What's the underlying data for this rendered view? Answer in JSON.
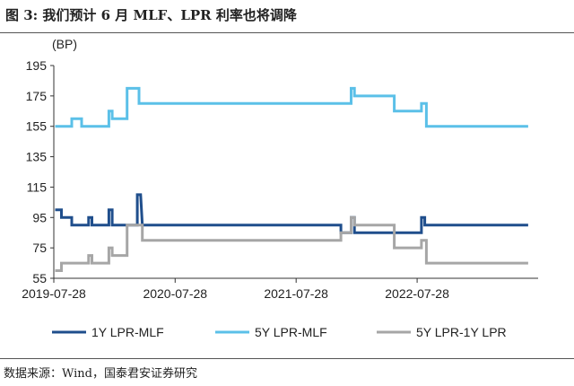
{
  "header": {
    "title": "图 3: 我们预计 6 月 MLF、LPR 利率也将调降"
  },
  "footer": {
    "source": "数据来源：Wind，国泰君安证券研究"
  },
  "chart_data": {
    "type": "line",
    "unit_label": "(BP)",
    "ylim": [
      55,
      195
    ],
    "yticks": [
      55,
      75,
      95,
      115,
      135,
      155,
      175,
      195
    ],
    "xlim": [
      "2019-07-28",
      "2023-07-28"
    ],
    "xticks": [
      "2019-07-28",
      "2020-07-28",
      "2021-07-28",
      "2022-07-28"
    ],
    "grid": false,
    "legend_position": "bottom",
    "series": [
      {
        "name": "1Y LPR-MLF",
        "color": "#1F4E8C",
        "points": [
          [
            "2019-08-01",
            100
          ],
          [
            "2019-08-20",
            100
          ],
          [
            "2019-08-20",
            95
          ],
          [
            "2019-09-20",
            95
          ],
          [
            "2019-09-20",
            90
          ],
          [
            "2019-11-10",
            90
          ],
          [
            "2019-11-10",
            95
          ],
          [
            "2019-11-20",
            95
          ],
          [
            "2019-11-20",
            90
          ],
          [
            "2020-01-10",
            90
          ],
          [
            "2020-01-10",
            100
          ],
          [
            "2020-01-20",
            100
          ],
          [
            "2020-01-20",
            90
          ],
          [
            "2020-04-05",
            90
          ],
          [
            "2020-04-05",
            110
          ],
          [
            "2020-04-15",
            110
          ],
          [
            "2020-04-20",
            90
          ],
          [
            "2021-12-10",
            90
          ],
          [
            "2021-12-10",
            85
          ],
          [
            "2022-01-10",
            85
          ],
          [
            "2022-01-10",
            95
          ],
          [
            "2022-01-20",
            95
          ],
          [
            "2022-01-20",
            85
          ],
          [
            "2022-08-10",
            85
          ],
          [
            "2022-08-10",
            95
          ],
          [
            "2022-08-20",
            95
          ],
          [
            "2022-08-20",
            90
          ],
          [
            "2023-06-28",
            90
          ]
        ]
      },
      {
        "name": "5Y LPR-MLF",
        "color": "#5BC0E8",
        "points": [
          [
            "2019-08-01",
            155
          ],
          [
            "2019-09-20",
            155
          ],
          [
            "2019-09-20",
            160
          ],
          [
            "2019-10-20",
            160
          ],
          [
            "2019-10-20",
            155
          ],
          [
            "2020-01-10",
            155
          ],
          [
            "2020-01-10",
            165
          ],
          [
            "2020-01-20",
            165
          ],
          [
            "2020-01-20",
            160
          ],
          [
            "2020-03-05",
            160
          ],
          [
            "2020-03-05",
            180
          ],
          [
            "2020-04-10",
            180
          ],
          [
            "2020-04-10",
            170
          ],
          [
            "2022-01-10",
            170
          ],
          [
            "2022-01-10",
            180
          ],
          [
            "2022-01-20",
            180
          ],
          [
            "2022-01-20",
            175
          ],
          [
            "2022-05-20",
            175
          ],
          [
            "2022-05-20",
            165
          ],
          [
            "2022-08-10",
            165
          ],
          [
            "2022-08-10",
            170
          ],
          [
            "2022-08-25",
            170
          ],
          [
            "2022-08-25",
            155
          ],
          [
            "2023-06-28",
            155
          ]
        ]
      },
      {
        "name": "5Y LPR-1Y LPR",
        "color": "#A6A6A6",
        "points": [
          [
            "2019-08-01",
            60
          ],
          [
            "2019-08-20",
            60
          ],
          [
            "2019-08-20",
            65
          ],
          [
            "2019-11-10",
            65
          ],
          [
            "2019-11-10",
            70
          ],
          [
            "2019-11-20",
            70
          ],
          [
            "2019-11-20",
            65
          ],
          [
            "2020-01-10",
            65
          ],
          [
            "2020-01-10",
            75
          ],
          [
            "2020-01-20",
            75
          ],
          [
            "2020-01-20",
            70
          ],
          [
            "2020-03-05",
            70
          ],
          [
            "2020-03-05",
            90
          ],
          [
            "2020-04-20",
            90
          ],
          [
            "2020-04-20",
            80
          ],
          [
            "2021-12-10",
            80
          ],
          [
            "2021-12-10",
            85
          ],
          [
            "2022-01-10",
            85
          ],
          [
            "2022-01-10",
            95
          ],
          [
            "2022-01-20",
            95
          ],
          [
            "2022-01-20",
            90
          ],
          [
            "2022-05-20",
            90
          ],
          [
            "2022-05-20",
            75
          ],
          [
            "2022-08-10",
            75
          ],
          [
            "2022-08-10",
            80
          ],
          [
            "2022-08-25",
            80
          ],
          [
            "2022-08-25",
            65
          ],
          [
            "2023-06-28",
            65
          ]
        ]
      }
    ]
  }
}
